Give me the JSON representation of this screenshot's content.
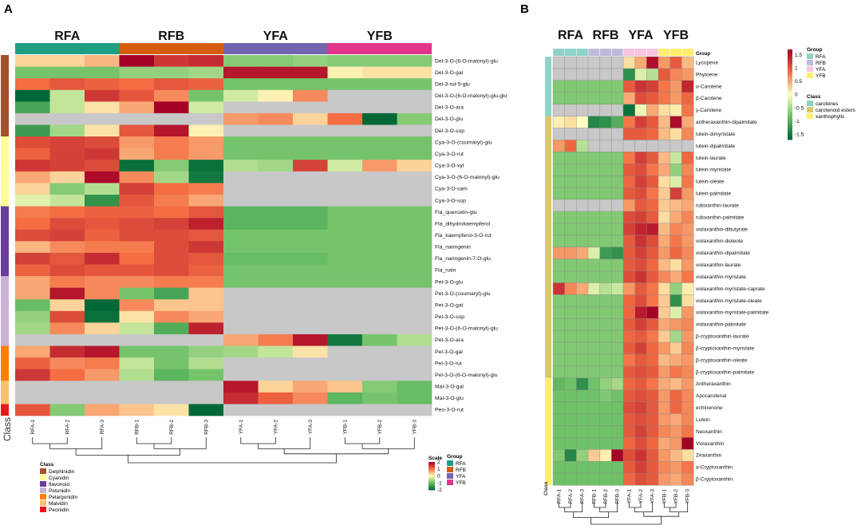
{
  "chart_data": [
    {
      "type": "heatmap",
      "panel_label": "A",
      "groups": [
        "RFA",
        "RFB",
        "YFA",
        "YFB"
      ],
      "group_colors": {
        "RFA": "#1e9e82",
        "RFB": "#d45e0e",
        "YFA": "#7465b0",
        "YFB": "#e2348a"
      },
      "columns": [
        "RFA-1",
        "RFA-2",
        "RFA-3",
        "RFB-1",
        "RFB-2",
        "RFB-3",
        "YFA-1",
        "YFA-2",
        "YFA-3",
        "YFB-1",
        "YFB-2",
        "YFB-3"
      ],
      "rows": [
        "Del-3-O-(6-O-malonyl)-glu",
        "Del-3-O-gal",
        "Del-3-rut-5-glu",
        "Del-3-O-(6-O-malonyl)-glu-glu",
        "Del-3-O-ara",
        "Del-3-O-glu",
        "Del-3-O-sop",
        "Cya-3-O-(coumaryl)-glu",
        "Cya-3-O-rut",
        "Cya-3-O-xyl",
        "Cya-3-O-(6-O-malonyl)-glu",
        "Cya-3-O-sam",
        "Cya-3-O-sop",
        "Fla_quercetin-glu",
        "Fla_dihydrokaempferol",
        "Fla_kaempferol-3-O-rut",
        "Fla_naringenin",
        "Fla_naringenin-7-O-glu",
        "Fla_rutin",
        "Pet-3-O-glu",
        "Pet-3-O-(coumaryl)-glu",
        "Pet-3-O-gal",
        "Pet-3-O-sop",
        "Pet-3-O-(6-O-malonyl)-glu",
        "Pet-3-O-ara",
        "Pel-3-O-gal",
        "Pel-3-O-rut",
        "Pel-3-O-(6-O-malonyl)-glu",
        "Mal-3-O-gal",
        "Mal-3-O-glu",
        "Peo-3-O-rut"
      ],
      "row_class_index": [
        0,
        0,
        0,
        0,
        0,
        0,
        0,
        1,
        1,
        1,
        1,
        1,
        1,
        2,
        2,
        2,
        2,
        2,
        2,
        3,
        3,
        3,
        3,
        3,
        3,
        4,
        4,
        4,
        5,
        5,
        6
      ],
      "values": [
        [
          0.3,
          0.3,
          0.5,
          2.0,
          1.5,
          1.6,
          -0.8,
          -0.8,
          -0.7,
          -0.8,
          -0.8,
          -0.8
        ],
        [
          -0.9,
          -0.9,
          -0.9,
          -0.7,
          -0.7,
          -0.6,
          1.8,
          1.8,
          1.8,
          0.1,
          0.2,
          0.2
        ],
        [
          1.0,
          1.2,
          1.1,
          1.0,
          1.2,
          1.1,
          -0.9,
          -0.9,
          -0.9,
          -0.9,
          -0.9,
          -0.9
        ],
        [
          -2.0,
          -0.4,
          1.5,
          1.2,
          0.8,
          -0.9,
          -0.3,
          0.1,
          0.8,
          null,
          null,
          null
        ],
        [
          -1.3,
          -0.4,
          0.2,
          0.6,
          2.0,
          -0.3,
          null,
          null,
          null,
          null,
          null,
          null
        ],
        [
          null,
          null,
          null,
          null,
          null,
          null,
          0.7,
          0.8,
          0.3,
          1.0,
          -2.0,
          -0.8
        ],
        [
          -1.4,
          -0.6,
          0.2,
          1.2,
          1.8,
          0.1,
          null,
          null,
          null,
          null,
          null,
          null
        ],
        [
          1.3,
          1.4,
          1.3,
          0.7,
          0.9,
          0.7,
          -0.9,
          -0.9,
          -0.9,
          -0.9,
          -0.9,
          -0.9
        ],
        [
          1.1,
          1.4,
          1.5,
          0.6,
          0.9,
          0.7,
          -0.9,
          -0.9,
          -0.9,
          -0.9,
          -0.9,
          -0.9
        ],
        [
          1.5,
          1.4,
          1.3,
          -1.9,
          -0.8,
          -1.9,
          -0.5,
          -0.6,
          1.4,
          -0.3,
          0.7,
          0.3
        ],
        [
          0.6,
          0.3,
          1.9,
          0.8,
          -0.6,
          -1.8,
          null,
          null,
          null,
          null,
          null,
          null
        ],
        [
          0.3,
          -0.8,
          -0.5,
          1.4,
          1.0,
          0.9,
          null,
          null,
          null,
          null,
          null,
          null
        ],
        [
          -0.2,
          -0.4,
          -1.5,
          1.2,
          0.9,
          0.6,
          null,
          null,
          null,
          null,
          null,
          null
        ],
        [
          0.9,
          1.0,
          1.1,
          1.1,
          1.0,
          1.2,
          -1.1,
          -1.1,
          -1.1,
          -0.9,
          -0.9,
          -0.9
        ],
        [
          1.0,
          1.3,
          1.2,
          1.3,
          1.4,
          1.7,
          -1.1,
          -1.1,
          -1.1,
          -0.9,
          -0.9,
          -0.9
        ],
        [
          1.3,
          1.4,
          1.1,
          1.3,
          1.3,
          1.2,
          -0.9,
          -0.9,
          -0.9,
          -0.9,
          -0.9,
          -0.9
        ],
        [
          0.5,
          0.8,
          0.9,
          0.9,
          1.3,
          1.5,
          -0.9,
          -0.9,
          -0.9,
          -0.9,
          -0.9,
          -0.9
        ],
        [
          1.4,
          1.2,
          1.6,
          1.0,
          1.3,
          1.2,
          -1.0,
          -1.0,
          -1.0,
          -0.9,
          -0.9,
          -0.9
        ],
        [
          1.1,
          1.3,
          1.2,
          1.2,
          1.3,
          1.1,
          -0.9,
          -0.9,
          -0.9,
          -0.9,
          -0.9,
          -0.9
        ],
        [
          0.6,
          0.9,
          0.8,
          0.8,
          0.9,
          0.9,
          -0.9,
          -0.9,
          -0.9,
          -0.9,
          -0.9,
          -0.9
        ],
        [
          0.6,
          1.8,
          0.8,
          -0.9,
          -1.3,
          0.4,
          null,
          null,
          null,
          null,
          null,
          null
        ],
        [
          -1.0,
          0.3,
          -2.0,
          0.8,
          0.4,
          0.4,
          null,
          null,
          null,
          null,
          null,
          null
        ],
        [
          -0.7,
          1.3,
          -1.9,
          0.2,
          0.8,
          0.6,
          null,
          null,
          null,
          null,
          null,
          null
        ],
        [
          -0.6,
          0.8,
          0.3,
          -0.4,
          -1.2,
          1.7,
          null,
          null,
          null,
          null,
          null,
          null
        ],
        [
          null,
          null,
          null,
          null,
          null,
          null,
          0.6,
          0.9,
          1.8,
          -1.8,
          -0.9,
          -0.5
        ],
        [
          0.6,
          1.6,
          1.8,
          -0.9,
          -0.9,
          -0.7,
          -0.6,
          -0.4,
          0.2,
          null,
          null,
          null
        ],
        [
          1.1,
          0.8,
          0.9,
          -0.4,
          -0.9,
          -0.5,
          null,
          null,
          null,
          null,
          null,
          null
        ],
        [
          1.5,
          1.0,
          0.7,
          -0.5,
          -1.1,
          -0.9,
          null,
          null,
          null,
          null,
          null,
          null
        ],
        [
          null,
          null,
          null,
          null,
          null,
          null,
          1.8,
          0.3,
          0.6,
          0.4,
          -0.8,
          -1.0
        ],
        [
          null,
          null,
          null,
          null,
          null,
          null,
          1.6,
          1.1,
          0.8,
          -1.1,
          -0.9,
          -1.0
        ],
        [
          1.2,
          -0.8,
          0.6,
          0.4,
          0.2,
          -2.0,
          null,
          null,
          null,
          null,
          null,
          null
        ]
      ],
      "column_labels_axis": "Class",
      "legend_scale": {
        "title": "Scale",
        "ticks": [
          "2",
          "1",
          "0",
          "-1",
          "-2"
        ],
        "range": [
          -2,
          2
        ]
      },
      "legend_group": {
        "title": "Group",
        "items": [
          "RFA",
          "RFB",
          "YFA",
          "YFB"
        ]
      },
      "legend_class": {
        "title": "Class",
        "items": [
          "Delphinidin",
          "Cyanidin",
          "flavonoid",
          "Petunidin",
          "Pelargonidin",
          "Malvidin",
          "Peonidin"
        ],
        "colors": [
          "#a0522d",
          "#ffff99",
          "#6a3d9a",
          "#cab2d6",
          "#ff7f00",
          "#fdbf6f",
          "#e31a1c"
        ]
      }
    },
    {
      "type": "heatmap",
      "panel_label": "B",
      "groups": [
        "RFA",
        "RFB",
        "YFA",
        "YFB"
      ],
      "group_colors": {
        "RFA": "#8dd3c7",
        "RFB": "#bebada",
        "YFA": "#f7c5e0",
        "YFB": "#ffed6f"
      },
      "annotation_title": "Group",
      "columns": [
        "RFA-1",
        "RFA-2",
        "RFA-3",
        "RFB-1",
        "RFB-2",
        "RFB-3",
        "YFA-1",
        "YFA-2",
        "YFA-3",
        "YFB-1",
        "YFB-2",
        "YFB-3"
      ],
      "rows": [
        "Lycopene",
        "Phytoene",
        "α-Carotene",
        "β-Carotene",
        "γ-Carotene",
        "antheraxanthin-dipalmitate",
        "lutein-dimyristate",
        "lutein-dipalmitate",
        "lutein-laurate",
        "lutein-myristate",
        "lutein-oleate",
        "lutein-palmitate",
        "rubixanthin-laurate",
        "rubixanthin-palmitate",
        "violaxanthin-dibutyrate",
        "violaxanthin-dioleote",
        "violaxanthin-dipalmitate",
        "violaxanthin-laurate",
        "violaxanthin-myristate",
        "violaxanthin-myristate-caprate",
        "violaxanthin-myristate-oleate",
        "violaxanthin-myristate-palmitate",
        "violaxanthin-palmitate",
        "β-cryptoxanthin-laurate",
        "β-cryptoxanthin-myristate",
        "β-cryptoxanthin-oleate",
        "β-cryptoxanthin-palmitate",
        "Antheraxanthin",
        "Apocarotenal",
        "echinenone",
        "Lutein",
        "Neoxanthin",
        "Violaxanthin",
        "Zeaxanthin",
        "α-Cryptoxanthin",
        "β-Cryptoxanthin"
      ],
      "row_class_index": [
        0,
        0,
        0,
        0,
        0,
        1,
        1,
        1,
        1,
        1,
        1,
        1,
        1,
        1,
        1,
        1,
        1,
        1,
        1,
        1,
        1,
        1,
        1,
        1,
        1,
        1,
        1,
        2,
        2,
        2,
        2,
        2,
        2,
        2,
        2,
        2
      ],
      "values": [
        [
          null,
          null,
          null,
          null,
          null,
          null,
          0.2,
          0.5,
          1.6,
          0.6,
          1.0,
          0.4
        ],
        [
          null,
          null,
          null,
          null,
          null,
          null,
          -1.3,
          -0.2,
          -0.4,
          1.0,
          0.7,
          0.6
        ],
        [
          -0.7,
          -0.7,
          -0.7,
          -0.7,
          -0.7,
          -0.7,
          1.0,
          1.3,
          1.2,
          0.8,
          0.6,
          1.4
        ],
        [
          -0.7,
          -0.7,
          -0.7,
          -0.7,
          -0.7,
          -0.7,
          0.5,
          1.1,
          1.0,
          0.8,
          0.6,
          0.9
        ],
        [
          null,
          null,
          null,
          null,
          null,
          null,
          -1.6,
          -0.1,
          0.5,
          0.2,
          0.1,
          0.8
        ],
        [
          0.1,
          0.2,
          0.0,
          -1.4,
          -1.3,
          -1.0,
          0.8,
          1.2,
          1.0,
          0.4,
          1.6,
          0.5
        ],
        [
          null,
          null,
          null,
          null,
          null,
          null,
          1.0,
          1.0,
          0.9,
          0.4,
          0.2,
          0.7
        ],
        [
          0.6,
          0.9,
          -0.4,
          null,
          null,
          null,
          null,
          null,
          null,
          null,
          null,
          null
        ],
        [
          -0.7,
          -0.7,
          -0.7,
          -0.7,
          -0.7,
          -0.7,
          0.8,
          1.2,
          1.0,
          0.4,
          -0.3,
          0.9
        ],
        [
          -0.7,
          -0.7,
          -0.7,
          -0.7,
          -0.7,
          -0.7,
          1.0,
          1.1,
          0.8,
          0.5,
          -0.6,
          0.7
        ],
        [
          -0.7,
          -0.7,
          -0.7,
          -0.7,
          -0.7,
          -0.7,
          0.9,
          1.2,
          1.0,
          0.2,
          -0.2,
          0.8
        ],
        [
          -0.7,
          -0.7,
          -0.7,
          -0.7,
          -0.7,
          -0.7,
          1.0,
          1.1,
          0.8,
          0.3,
          1.2,
          0.6
        ],
        [
          null,
          null,
          null,
          null,
          null,
          null,
          0.6,
          1.0,
          0.9,
          0.3,
          0.4,
          0.5
        ],
        [
          -0.7,
          -0.7,
          -0.7,
          -0.7,
          -0.7,
          -0.7,
          1.1,
          1.2,
          1.0,
          0.2,
          0.5,
          0.7
        ],
        [
          -0.7,
          -0.7,
          -0.7,
          -0.7,
          -0.7,
          -0.7,
          1.2,
          1.4,
          1.5,
          0.4,
          0.7,
          0.6
        ],
        [
          -0.7,
          -0.7,
          -0.7,
          -0.7,
          -0.7,
          -0.7,
          1.0,
          1.3,
          1.1,
          0.5,
          0.8,
          0.6
        ],
        [
          0.6,
          0.6,
          0.5,
          -0.2,
          -1.2,
          -1.3,
          1.0,
          1.2,
          1.0,
          0.6,
          0.9,
          0.7
        ],
        [
          -0.7,
          -0.7,
          -0.7,
          -0.7,
          -0.7,
          -0.7,
          1.0,
          1.1,
          0.9,
          0.4,
          0.2,
          0.6
        ],
        [
          -0.7,
          -0.7,
          -0.7,
          -0.7,
          -0.7,
          -0.7,
          1.1,
          1.3,
          1.0,
          0.7,
          0.5,
          0.8
        ],
        [
          1.3,
          0.7,
          0.5,
          -0.2,
          -0.4,
          -0.3,
          0.6,
          1.0,
          0.8,
          0.2,
          -0.6,
          0.1
        ],
        [
          -0.7,
          -0.7,
          -0.7,
          -0.7,
          -0.7,
          -0.7,
          0.9,
          1.1,
          0.8,
          0.3,
          -1.3,
          0.2
        ],
        [
          -0.7,
          -0.7,
          -0.7,
          -0.7,
          -0.7,
          -0.7,
          0.9,
          1.5,
          1.7,
          0.3,
          -0.2,
          0.6
        ],
        [
          -0.7,
          -0.7,
          -0.7,
          -0.7,
          -0.7,
          -0.7,
          1.0,
          1.2,
          1.0,
          0.5,
          0.6,
          0.7
        ],
        [
          -0.7,
          -0.7,
          -0.7,
          -0.7,
          -0.7,
          -0.7,
          0.9,
          1.0,
          0.8,
          0.3,
          -0.5,
          0.6
        ],
        [
          -0.7,
          -0.7,
          -0.7,
          -0.7,
          -0.7,
          -0.7,
          1.0,
          1.2,
          0.9,
          0.6,
          0.3,
          0.7
        ],
        [
          -0.7,
          -0.7,
          -0.7,
          -0.7,
          -0.7,
          -0.7,
          0.8,
          1.0,
          0.9,
          0.4,
          0.5,
          0.6
        ],
        [
          -0.7,
          -0.7,
          -0.7,
          -0.7,
          -0.7,
          -0.7,
          1.0,
          1.1,
          1.0,
          0.6,
          0.8,
          0.7
        ],
        [
          -0.9,
          -0.8,
          -1.3,
          -0.8,
          -0.6,
          -0.5,
          0.9,
          1.0,
          0.8,
          0.5,
          0.4,
          0.6
        ],
        [
          -0.8,
          -0.8,
          -0.8,
          -0.8,
          -0.7,
          -0.8,
          1.0,
          1.1,
          1.0,
          0.6,
          0.9,
          0.7
        ],
        [
          -0.8,
          -0.8,
          -0.8,
          -0.8,
          -0.8,
          -0.8,
          1.1,
          1.2,
          1.0,
          0.6,
          0.9,
          0.7
        ],
        [
          -0.8,
          -0.8,
          -0.8,
          -0.8,
          -0.8,
          -0.8,
          1.0,
          1.1,
          1.0,
          0.6,
          0.5,
          0.7
        ],
        [
          -0.8,
          -0.8,
          -0.8,
          -0.8,
          -0.8,
          -0.8,
          1.0,
          1.2,
          1.0,
          0.7,
          0.6,
          0.8
        ],
        [
          -0.8,
          -0.8,
          -0.8,
          -0.8,
          -0.8,
          -0.8,
          0.9,
          1.1,
          0.9,
          0.5,
          0.6,
          1.7
        ],
        [
          -0.7,
          -1.4,
          -0.6,
          0.3,
          0.1,
          1.9,
          1.1,
          1.3,
          1.0,
          0.6,
          0.4,
          0.2
        ],
        [
          -0.8,
          -0.8,
          -0.8,
          -0.8,
          -0.8,
          -0.8,
          1.0,
          1.2,
          1.0,
          0.7,
          0.6,
          0.8
        ],
        [
          -0.8,
          -0.8,
          -0.8,
          -0.8,
          -0.8,
          -0.8,
          0.9,
          1.1,
          1.0,
          0.6,
          0.5,
          0.7
        ]
      ],
      "column_labels_axis": "Class",
      "legend_scale": {
        "ticks": [
          "1.5",
          "1",
          "0.5",
          "0",
          "-0.5",
          "-1",
          "-1.5"
        ],
        "range": [
          -1.7,
          1.7
        ]
      },
      "legend_group": {
        "title": "Group",
        "items": [
          "RFA",
          "RFB",
          "YFA",
          "YFB"
        ]
      },
      "legend_class": {
        "title": "Class",
        "items": [
          "carotenes",
          "carotenoid esters",
          "xanthophylls"
        ],
        "colors": [
          "#8dd3c7",
          "#d9c86a",
          "#ffed6f"
        ]
      }
    }
  ]
}
